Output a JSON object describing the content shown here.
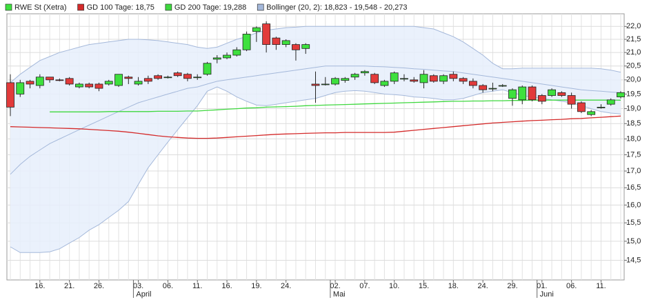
{
  "chart_data": {
    "type": "candlestick",
    "log_scale": true,
    "grid": true,
    "ylim": [
      14.0,
      22.5
    ],
    "yticks": [
      {
        "value": 14.5,
        "label": "14,5"
      },
      {
        "value": 15,
        "label": "15,0"
      },
      {
        "value": 15.5,
        "label": "15,5"
      },
      {
        "value": 16,
        "label": "16,0"
      },
      {
        "value": 16.5,
        "label": "16,5"
      },
      {
        "value": 17,
        "label": "17,0"
      },
      {
        "value": 17.5,
        "label": "17,5"
      },
      {
        "value": 18,
        "label": "18,0"
      },
      {
        "value": 18.5,
        "label": "18,5"
      },
      {
        "value": 19,
        "label": "19,0"
      },
      {
        "value": 19.5,
        "label": "19,5"
      },
      {
        "value": 20,
        "label": "20,0"
      },
      {
        "value": 20.5,
        "label": "20,5"
      },
      {
        "value": 21,
        "label": "21,0"
      },
      {
        "value": 21.5,
        "label": "21,5"
      },
      {
        "value": 22,
        "label": "22,0"
      }
    ],
    "categories": [
      null,
      null,
      null,
      "16.",
      null,
      null,
      "21.",
      null,
      null,
      "26.",
      null,
      null,
      null,
      "03.",
      null,
      null,
      "06.",
      null,
      null,
      "11.",
      null,
      null,
      "16.",
      null,
      null,
      "19.",
      null,
      null,
      "24.",
      null,
      null,
      null,
      null,
      "02.",
      null,
      null,
      "07.",
      null,
      null,
      "10.",
      null,
      null,
      "15.",
      null,
      null,
      "18.",
      null,
      null,
      "24.",
      null,
      null,
      "29.",
      null,
      null,
      "01.",
      null,
      null,
      "06.",
      null,
      null,
      "11.",
      null,
      null
    ],
    "month_categories": [
      null,
      null,
      null,
      null,
      null,
      null,
      null,
      null,
      null,
      null,
      null,
      null,
      null,
      "April",
      null,
      null,
      null,
      null,
      null,
      null,
      null,
      null,
      null,
      null,
      null,
      null,
      null,
      null,
      null,
      null,
      null,
      null,
      null,
      "Mai",
      null,
      null,
      null,
      null,
      null,
      null,
      null,
      null,
      null,
      null,
      null,
      null,
      null,
      null,
      null,
      null,
      null,
      null,
      null,
      null,
      "Juni",
      null,
      null,
      null,
      null,
      null,
      null,
      null,
      null
    ],
    "series": [
      {
        "name": "RWE St (Xetra)",
        "kind": "candlestick",
        "color": "#3ee03e",
        "down_color": "#e23b3b",
        "open": [
          19.9,
          19.5,
          19.95,
          19.8,
          20.1,
          20.0,
          20.05,
          19.75,
          19.85,
          19.85,
          19.85,
          19.8,
          20.1,
          19.85,
          20.05,
          20.15,
          20.1,
          20.25,
          20.2,
          20.1,
          20.2,
          20.75,
          20.8,
          20.9,
          21.1,
          21.8,
          22.1,
          21.55,
          21.3,
          21.3,
          21.15,
          19.85,
          19.85,
          19.85,
          19.98,
          20.1,
          20.25,
          20.2,
          19.8,
          19.95,
          20.05,
          20.0,
          19.9,
          20.15,
          19.95,
          20.2,
          20.05,
          19.95,
          19.8,
          19.7,
          19.8,
          19.35,
          19.3,
          19.75,
          19.45,
          19.45,
          19.55,
          19.45,
          19.2,
          18.8,
          19.05,
          19.15,
          19.4
        ],
        "high": [
          20.2,
          20.0,
          20.0,
          20.2,
          20.1,
          20.05,
          20.1,
          19.9,
          19.9,
          19.9,
          20.0,
          20.2,
          20.15,
          20.1,
          20.15,
          20.2,
          20.15,
          20.3,
          20.25,
          20.2,
          20.65,
          20.9,
          21.0,
          21.2,
          21.8,
          22.0,
          22.2,
          21.6,
          21.5,
          21.35,
          21.35,
          20.3,
          20.1,
          20.1,
          20.1,
          20.25,
          20.35,
          20.25,
          20.0,
          20.3,
          20.2,
          20.1,
          20.35,
          20.2,
          20.2,
          20.3,
          20.1,
          20.05,
          19.85,
          19.9,
          19.85,
          19.7,
          19.8,
          19.8,
          19.5,
          19.7,
          19.6,
          19.55,
          19.25,
          18.95,
          19.15,
          19.35,
          19.6
        ],
        "low": [
          18.75,
          19.4,
          19.7,
          19.7,
          19.9,
          19.95,
          19.8,
          19.7,
          19.7,
          19.6,
          19.8,
          19.75,
          19.85,
          19.8,
          19.85,
          20.0,
          20.05,
          20.1,
          19.95,
          20.0,
          20.15,
          20.6,
          20.75,
          20.85,
          21.05,
          21.4,
          21.0,
          21.1,
          21.2,
          20.7,
          20.95,
          19.2,
          19.8,
          19.8,
          19.9,
          20.0,
          20.15,
          19.85,
          19.75,
          19.85,
          19.95,
          19.9,
          19.7,
          19.9,
          19.85,
          19.95,
          19.85,
          19.7,
          19.55,
          19.6,
          19.75,
          19.1,
          19.15,
          19.25,
          19.15,
          19.4,
          19.4,
          19.0,
          18.85,
          18.75,
          19.0,
          19.1,
          19.35
        ],
        "close": [
          19.05,
          19.9,
          19.85,
          20.1,
          20.0,
          19.98,
          19.85,
          19.85,
          19.75,
          19.7,
          19.95,
          20.2,
          20.05,
          19.95,
          19.95,
          20.05,
          20.1,
          20.15,
          20.05,
          20.1,
          20.6,
          20.8,
          20.9,
          21.1,
          21.7,
          21.95,
          21.3,
          21.3,
          21.45,
          21.1,
          21.3,
          19.8,
          19.85,
          20.05,
          20.05,
          20.2,
          20.3,
          19.9,
          19.95,
          20.25,
          20.05,
          19.95,
          20.2,
          19.95,
          20.15,
          20.05,
          19.95,
          19.8,
          19.65,
          19.7,
          19.8,
          19.65,
          19.75,
          19.3,
          19.25,
          19.65,
          19.45,
          19.15,
          18.9,
          18.9,
          19.05,
          19.3,
          19.55
        ]
      },
      {
        "name": "GD 100 Tage: 18,75",
        "kind": "line",
        "color": "#d42a2a",
        "values": [
          18.4,
          18.39,
          18.38,
          18.37,
          18.36,
          18.35,
          18.34,
          18.33,
          18.31,
          18.29,
          18.27,
          18.25,
          18.22,
          18.18,
          18.14,
          18.1,
          18.07,
          18.05,
          18.03,
          18.02,
          18.02,
          18.03,
          18.05,
          18.07,
          18.09,
          18.11,
          18.13,
          18.15,
          18.16,
          18.17,
          18.18,
          18.19,
          18.2,
          18.2,
          18.21,
          18.21,
          18.21,
          18.21,
          18.21,
          18.22,
          18.25,
          18.28,
          18.31,
          18.34,
          18.37,
          18.4,
          18.43,
          18.46,
          18.49,
          18.52,
          18.54,
          18.56,
          18.58,
          18.6,
          18.61,
          18.63,
          18.64,
          18.66,
          18.67,
          18.69,
          18.71,
          18.73,
          18.75
        ]
      },
      {
        "name": "GD 200 Tage: 19,288",
        "kind": "line",
        "color": "#3ed83e",
        "values": [
          null,
          null,
          null,
          null,
          18.89,
          18.89,
          18.89,
          18.89,
          18.89,
          18.89,
          18.9,
          18.9,
          18.9,
          18.9,
          18.9,
          18.91,
          18.91,
          18.91,
          18.92,
          18.92,
          18.94,
          18.96,
          18.98,
          19.0,
          19.02,
          19.03,
          19.05,
          19.06,
          19.07,
          19.08,
          19.1,
          19.11,
          19.12,
          19.13,
          19.14,
          19.15,
          19.16,
          19.17,
          19.18,
          19.19,
          19.2,
          19.21,
          19.22,
          19.23,
          19.24,
          19.25,
          19.25,
          19.26,
          19.26,
          19.27,
          19.27,
          19.28,
          19.28,
          19.29,
          19.29,
          19.29,
          19.29,
          19.29,
          19.29,
          19.29,
          19.29,
          19.29,
          19.288
        ]
      },
      {
        "name": "Bollinger (20, 2): 18,823 - 19,548 - 20,273",
        "kind": "band",
        "color": "#e6eefb",
        "line_color": "#a4b8da",
        "upper": [
          19.9,
          20.2,
          20.45,
          20.7,
          20.85,
          21.0,
          21.1,
          21.2,
          21.3,
          21.35,
          21.4,
          21.45,
          21.5,
          21.5,
          21.48,
          21.45,
          21.4,
          21.35,
          21.3,
          21.2,
          21.15,
          21.2,
          21.35,
          21.5,
          21.6,
          21.75,
          21.85,
          21.9,
          21.95,
          21.97,
          22.0,
          22.0,
          22.0,
          22.0,
          22.0,
          22.0,
          22.0,
          22.0,
          22.0,
          22.0,
          22.0,
          22.0,
          21.95,
          21.9,
          21.75,
          21.6,
          21.4,
          21.15,
          20.9,
          20.6,
          20.4,
          20.4,
          20.42,
          20.42,
          20.42,
          20.42,
          20.42,
          20.42,
          20.42,
          20.42,
          20.4,
          20.35,
          20.273
        ],
        "middle": [
          16.9,
          17.2,
          17.45,
          17.65,
          17.85,
          18.0,
          18.15,
          18.3,
          18.45,
          18.6,
          18.75,
          18.9,
          19.05,
          19.2,
          19.3,
          19.4,
          19.5,
          19.6,
          19.7,
          19.75,
          19.85,
          19.95,
          20.0,
          20.05,
          20.1,
          20.15,
          20.2,
          20.25,
          20.3,
          20.35,
          20.4,
          20.45,
          20.5,
          20.5,
          20.5,
          20.5,
          20.5,
          20.48,
          20.47,
          20.45,
          20.43,
          20.4,
          20.38,
          20.35,
          20.32,
          20.3,
          20.25,
          20.2,
          20.15,
          20.1,
          20.05,
          20.0,
          19.95,
          19.9,
          19.85,
          19.8,
          19.75,
          19.7,
          19.65,
          19.62,
          19.6,
          19.57,
          19.548
        ],
        "lower": [
          14.85,
          14.7,
          14.7,
          14.7,
          14.72,
          14.8,
          14.95,
          15.1,
          15.3,
          15.45,
          15.65,
          15.85,
          16.1,
          16.6,
          17.1,
          17.5,
          17.9,
          18.3,
          18.7,
          19.1,
          19.6,
          19.75,
          19.6,
          19.4,
          19.25,
          19.12,
          19.1,
          19.15,
          19.2,
          19.25,
          19.3,
          19.35,
          19.45,
          19.55,
          19.6,
          19.62,
          19.6,
          19.55,
          19.5,
          19.48,
          19.45,
          19.4,
          19.38,
          19.35,
          19.3,
          19.3,
          19.35,
          19.45,
          19.55,
          19.6,
          19.65,
          19.55,
          19.45,
          19.4,
          19.35,
          19.3,
          19.25,
          19.2,
          19.1,
          19.0,
          18.9,
          18.85,
          18.823
        ]
      }
    ]
  }
}
